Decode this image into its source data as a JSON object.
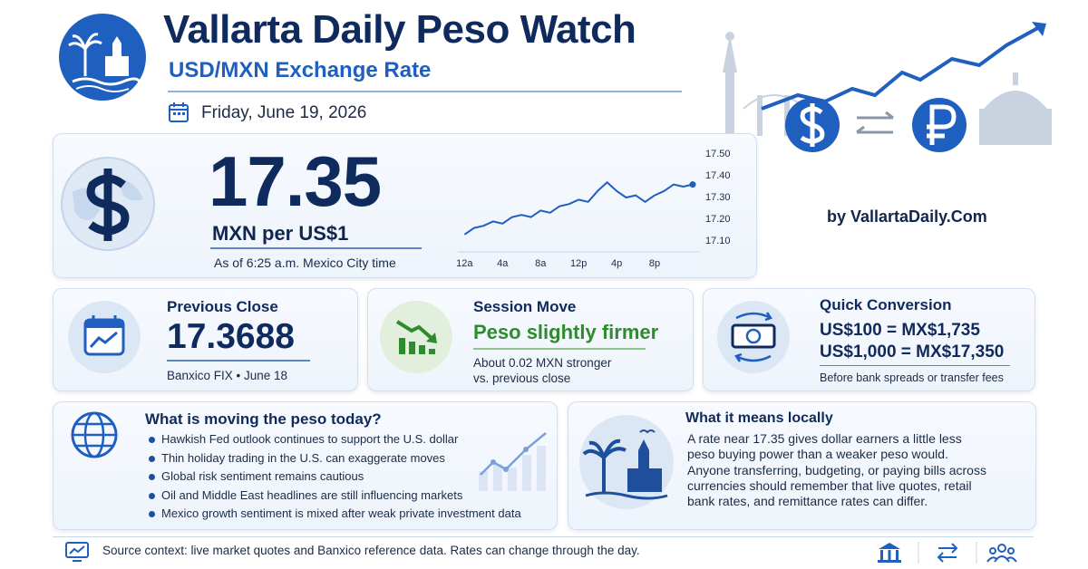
{
  "header": {
    "title": "Vallarta Daily Peso Watch",
    "subtitle": "USD/MXN Exchange Rate",
    "date": "Friday, June 19, 2026",
    "byline": "by VallartaDaily.Com"
  },
  "rate": {
    "value": "17.35",
    "unit": "MXN per US$1",
    "as_of": "As of 6:25 a.m. Mexico City time"
  },
  "chart_data": {
    "type": "line",
    "x": [
      0,
      1,
      2,
      3,
      4,
      5,
      6,
      7,
      8,
      9,
      10,
      11,
      12,
      13,
      14,
      15,
      16,
      17,
      18,
      19,
      20,
      21,
      22,
      23,
      24
    ],
    "series": [
      {
        "name": "USD/MXN",
        "color": "#1f5fbf",
        "values": [
          17.13,
          17.16,
          17.17,
          17.19,
          17.18,
          17.21,
          17.22,
          17.21,
          17.24,
          17.23,
          17.26,
          17.27,
          17.29,
          17.28,
          17.33,
          17.37,
          17.33,
          17.3,
          17.31,
          17.28,
          17.31,
          17.33,
          17.36,
          17.35,
          17.36
        ]
      }
    ],
    "xlim": [
      -0.7,
      24
    ],
    "xticks": [
      {
        "value": 0,
        "label": "12a"
      },
      {
        "value": 4,
        "label": "4a"
      },
      {
        "value": 8,
        "label": "8a"
      },
      {
        "value": 12,
        "label": "12p"
      },
      {
        "value": 16,
        "label": "4p"
      },
      {
        "value": 20,
        "label": "8p"
      }
    ],
    "ylim": [
      17.1,
      17.5
    ],
    "yticks": [
      {
        "value": 17.5,
        "label": "17.50"
      },
      {
        "value": 17.4,
        "label": "17.40"
      },
      {
        "value": 17.3,
        "label": "17.30"
      },
      {
        "value": 17.2,
        "label": "17.20"
      },
      {
        "value": 17.1,
        "label": "17.10"
      }
    ],
    "grid": false
  },
  "previous_close": {
    "label": "Previous Close",
    "value": "17.3688",
    "note": "Banxico FIX • June 18"
  },
  "session_move": {
    "label": "Session Move",
    "headline": "Peso slightly firmer",
    "note": [
      "About 0.02 MXN stronger",
      "vs. previous close"
    ]
  },
  "conversion": {
    "label": "Quick Conversion",
    "lines": [
      "US$100 = MX$1,735",
      "US$1,000 = MX$17,350"
    ],
    "note": "Before bank spreads or transfer fees"
  },
  "drivers": {
    "title": "What is moving the peso today?",
    "items": [
      "Hawkish Fed outlook continues to support the U.S. dollar",
      "Thin holiday trading in the U.S. can exaggerate moves",
      "Global risk sentiment remains cautious",
      "Oil and Middle East headlines are still influencing markets",
      "Mexico growth sentiment is mixed after weak private investment data"
    ]
  },
  "local": {
    "title": "What it means locally",
    "text": "A rate near 17.35 gives dollar earners a little less peso buying power than a weaker peso would. Anyone transferring, budgeting, or paying bills across currencies should remember that live quotes, retail bank rates, and remittance rates can differ."
  },
  "footer": {
    "source": "Source context:  live market quotes and Banxico reference data. Rates can change through the day."
  }
}
